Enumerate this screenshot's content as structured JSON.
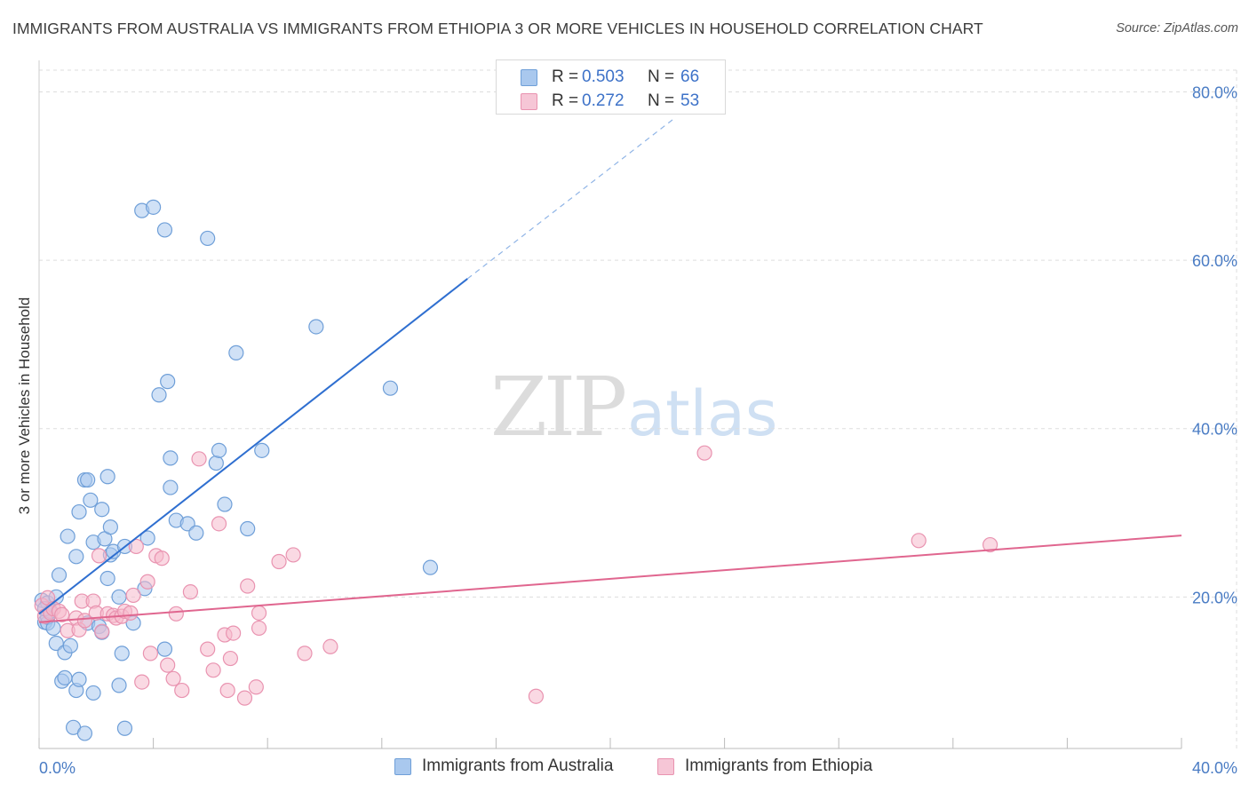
{
  "title": "IMMIGRANTS FROM AUSTRALIA VS IMMIGRANTS FROM ETHIOPIA 3 OR MORE VEHICLES IN HOUSEHOLD CORRELATION CHART",
  "source": "Source: ZipAtlas.com",
  "watermark": {
    "zip": "ZIP",
    "atlas": "atlas"
  },
  "legend": {
    "australia": {
      "r_label": "R =",
      "r_value": "0.503",
      "n_label": "N =",
      "n_value": "66"
    },
    "ethiopia": {
      "r_label": "R =",
      "r_value": "0.272",
      "n_label": "N =",
      "n_value": "53"
    }
  },
  "colors": {
    "australia_fill": "#a9c8ee",
    "australia_stroke": "#6f9fd8",
    "australia_line": "#2f6fd0",
    "ethiopia_fill": "#f6b9cc",
    "ethiopia_stroke": "#e993b0",
    "ethiopia_line": "#e0668f",
    "tick_text": "#4a7cc4",
    "grid": "#dddddd"
  },
  "chart_data": {
    "type": "scatter",
    "title": "IMMIGRANTS FROM AUSTRALIA VS IMMIGRANTS FROM ETHIOPIA 3 OR MORE VEHICLES IN HOUSEHOLD CORRELATION CHART",
    "xlabel": "",
    "ylabel": "3 or more Vehicles in Household",
    "xlim": [
      0,
      40
    ],
    "ylim": [
      2,
      83
    ],
    "x_tick_labels": [
      "0.0%",
      "40.0%"
    ],
    "y_ticks": [
      20,
      40,
      60,
      80
    ],
    "y_tick_labels": [
      "20.0%",
      "40.0%",
      "60.0%",
      "80.0%"
    ],
    "grid": true,
    "legend_position": "top-center",
    "series": [
      {
        "name": "Immigrants from Australia",
        "r": 0.503,
        "n": 66,
        "trend": {
          "x0": 0.0,
          "y0": 18.0,
          "x1": 15.0,
          "y1": 57.8,
          "dashed_to_x": 22.3,
          "dashed_to_y": 77.0
        },
        "points": [
          [
            0.1,
            19.6
          ],
          [
            0.2,
            17.0
          ],
          [
            0.3,
            16.9
          ],
          [
            0.3,
            17.6
          ],
          [
            0.3,
            19.3
          ],
          [
            0.4,
            18.3
          ],
          [
            0.5,
            16.3
          ],
          [
            0.6,
            20.0
          ],
          [
            0.6,
            14.5
          ],
          [
            0.7,
            22.6
          ],
          [
            0.8,
            10.0
          ],
          [
            0.9,
            10.4
          ],
          [
            0.9,
            13.4
          ],
          [
            1.0,
            27.2
          ],
          [
            1.1,
            14.2
          ],
          [
            1.2,
            4.5
          ],
          [
            1.3,
            8.9
          ],
          [
            1.3,
            24.8
          ],
          [
            1.4,
            10.2
          ],
          [
            1.4,
            30.1
          ],
          [
            1.6,
            3.8
          ],
          [
            1.6,
            33.9
          ],
          [
            1.7,
            33.9
          ],
          [
            1.7,
            16.9
          ],
          [
            1.8,
            31.5
          ],
          [
            1.9,
            8.6
          ],
          [
            1.9,
            26.5
          ],
          [
            2.1,
            16.5
          ],
          [
            2.2,
            30.4
          ],
          [
            2.2,
            15.8
          ],
          [
            2.3,
            26.9
          ],
          [
            2.4,
            22.2
          ],
          [
            2.4,
            34.3
          ],
          [
            2.5,
            28.3
          ],
          [
            2.5,
            25.0
          ],
          [
            2.6,
            25.4
          ],
          [
            2.8,
            9.5
          ],
          [
            2.8,
            20.0
          ],
          [
            2.9,
            13.3
          ],
          [
            3.0,
            4.4
          ],
          [
            3.0,
            26.0
          ],
          [
            3.3,
            16.9
          ],
          [
            3.6,
            65.9
          ],
          [
            3.7,
            21.0
          ],
          [
            3.8,
            27.0
          ],
          [
            4.0,
            66.3
          ],
          [
            4.2,
            44.0
          ],
          [
            4.4,
            13.8
          ],
          [
            4.4,
            63.6
          ],
          [
            4.5,
            45.6
          ],
          [
            4.6,
            36.5
          ],
          [
            4.6,
            33.0
          ],
          [
            4.8,
            29.1
          ],
          [
            5.2,
            28.7
          ],
          [
            5.5,
            27.6
          ],
          [
            5.9,
            62.6
          ],
          [
            6.2,
            35.9
          ],
          [
            6.3,
            37.4
          ],
          [
            6.5,
            31.0
          ],
          [
            6.9,
            49.0
          ],
          [
            7.3,
            28.1
          ],
          [
            7.8,
            37.4
          ],
          [
            9.7,
            52.1
          ],
          [
            12.3,
            44.8
          ],
          [
            13.7,
            23.5
          ],
          [
            0.2,
            18.6
          ]
        ]
      },
      {
        "name": "Immigrants from Ethiopia",
        "r": 0.272,
        "n": 53,
        "trend": {
          "x0": 0.0,
          "y0": 17.0,
          "x1": 40.0,
          "y1": 27.3
        },
        "points": [
          [
            0.1,
            19.0
          ],
          [
            0.2,
            17.7
          ],
          [
            0.3,
            19.9
          ],
          [
            0.4,
            18.1
          ],
          [
            0.5,
            18.6
          ],
          [
            0.7,
            18.3
          ],
          [
            0.8,
            17.9
          ],
          [
            1.0,
            16.0
          ],
          [
            1.3,
            17.5
          ],
          [
            1.4,
            16.1
          ],
          [
            1.5,
            19.5
          ],
          [
            1.6,
            17.2
          ],
          [
            1.9,
            19.5
          ],
          [
            2.0,
            18.1
          ],
          [
            2.1,
            24.9
          ],
          [
            2.2,
            15.9
          ],
          [
            2.4,
            18.0
          ],
          [
            2.6,
            17.8
          ],
          [
            2.7,
            17.5
          ],
          [
            2.9,
            17.7
          ],
          [
            3.0,
            18.3
          ],
          [
            3.2,
            18.1
          ],
          [
            3.3,
            20.2
          ],
          [
            3.4,
            26.0
          ],
          [
            3.6,
            9.9
          ],
          [
            3.8,
            21.8
          ],
          [
            3.9,
            13.3
          ],
          [
            4.1,
            24.9
          ],
          [
            4.3,
            24.6
          ],
          [
            4.5,
            11.9
          ],
          [
            4.7,
            10.3
          ],
          [
            4.8,
            18.0
          ],
          [
            5.0,
            8.9
          ],
          [
            5.3,
            20.6
          ],
          [
            5.6,
            36.4
          ],
          [
            5.9,
            13.8
          ],
          [
            6.1,
            11.3
          ],
          [
            6.3,
            28.7
          ],
          [
            6.5,
            15.5
          ],
          [
            6.6,
            8.9
          ],
          [
            6.7,
            12.7
          ],
          [
            6.8,
            15.7
          ],
          [
            7.2,
            8.0
          ],
          [
            7.3,
            21.3
          ],
          [
            7.6,
            9.3
          ],
          [
            7.7,
            18.1
          ],
          [
            7.7,
            16.3
          ],
          [
            8.4,
            24.2
          ],
          [
            8.9,
            25.0
          ],
          [
            9.3,
            13.3
          ],
          [
            10.2,
            14.1
          ],
          [
            17.4,
            8.2
          ],
          [
            23.3,
            37.1
          ],
          [
            30.8,
            26.7
          ],
          [
            33.3,
            26.2
          ]
        ]
      }
    ]
  }
}
